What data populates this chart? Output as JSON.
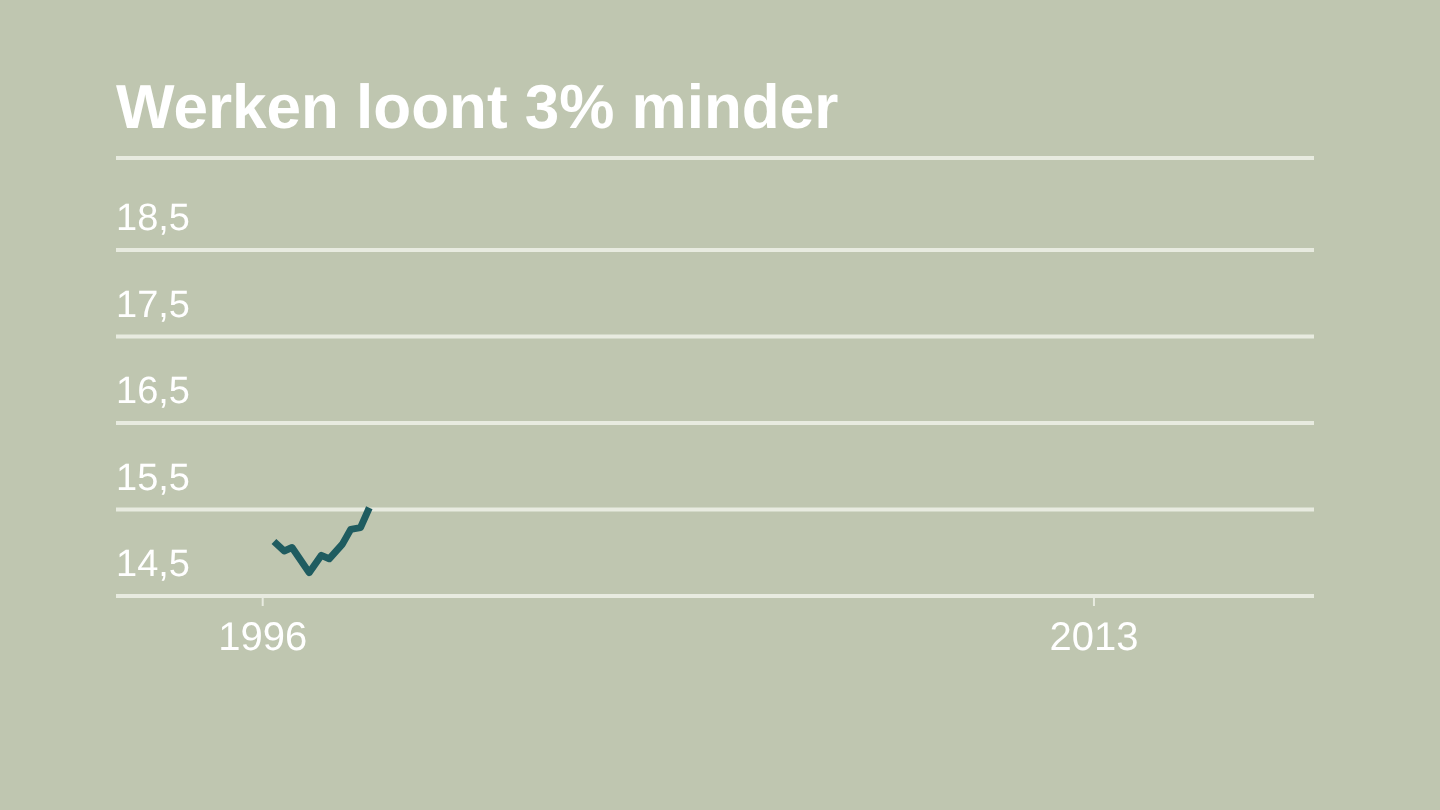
{
  "chart_data": {
    "type": "line",
    "title": "Werken loont 3% minder",
    "x": [
      1996.23,
      1996.44,
      1996.6,
      1996.95,
      1997.2,
      1997.36,
      1997.63,
      1997.8,
      1998.0,
      1998.18
    ],
    "series": [
      {
        "color": "#1f5c60",
        "values": [
          15.13,
          15.02,
          15.06,
          14.77,
          14.97,
          14.93,
          15.1,
          15.27,
          15.29,
          15.52
        ]
      }
    ],
    "xlim": [
      1993,
      2017.5
    ],
    "xticks": [
      1996,
      2013
    ],
    "ylim": [
      14.5,
      18.5
    ],
    "yticks": [
      {
        "value": 14.5,
        "label": "14,5"
      },
      {
        "value": 15.5,
        "label": "15,5"
      },
      {
        "value": 16.5,
        "label": "16,5"
      },
      {
        "value": 17.5,
        "label": "17,5"
      },
      {
        "value": 18.5,
        "label": "18,5"
      }
    ],
    "grid": "y",
    "marker": "none",
    "line_style": "solid"
  }
}
